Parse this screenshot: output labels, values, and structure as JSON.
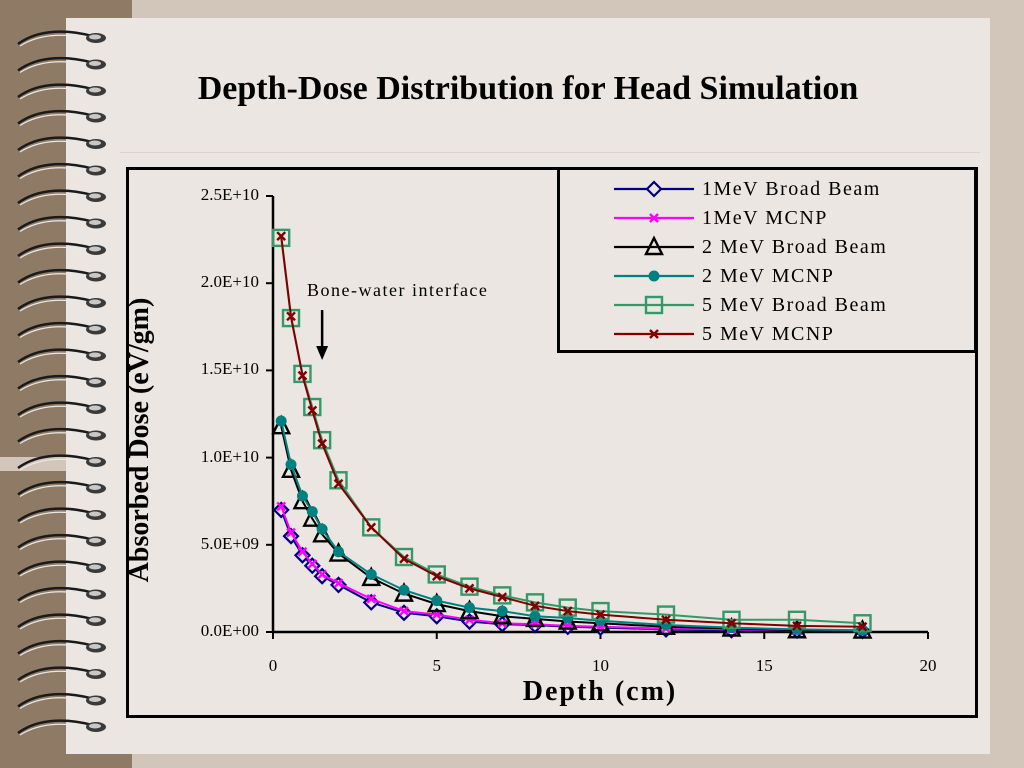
{
  "slide": {
    "title": "Depth-Dose Distribution for Head Simulation"
  },
  "chart_data": {
    "type": "line",
    "title": "",
    "xlabel": "Depth (cm)",
    "ylabel": "Absorbed Dose (eV/gm)",
    "xlim": [
      0,
      20
    ],
    "ylim": [
      0,
      25000000000
    ],
    "xticks": [
      0,
      5,
      10,
      15,
      20
    ],
    "xtick_labels": [
      "0",
      "5",
      "10",
      "15",
      "20"
    ],
    "yticks": [
      0,
      5000000000,
      10000000000,
      15000000000,
      20000000000,
      25000000000
    ],
    "ytick_labels": [
      "0.0E+00",
      "5.0E+09",
      "1.0E+10",
      "1.5E+10",
      "2.0E+10",
      "2.5E+10"
    ],
    "grid": false,
    "legend_position": "top-right",
    "annotation": {
      "text": "Bone-water interface",
      "x": 1.5,
      "y": 16500000000
    },
    "series": [
      {
        "name": "1MeV Broad Beam",
        "color": "#000080",
        "marker": "diamond",
        "x": [
          0.25,
          0.55,
          0.9,
          1.2,
          1.5,
          2.0,
          3.0,
          4.0,
          5.0,
          6.0,
          7.0,
          8.0,
          9.0,
          10.0,
          12.0,
          14.0,
          16.0,
          18.0
        ],
        "y": [
          7000000000,
          5500000000,
          4400000000,
          3800000000,
          3200000000,
          2700000000,
          1700000000,
          1100000000,
          900000000,
          600000000,
          450000000,
          400000000,
          300000000,
          250000000,
          150000000,
          100000000,
          80000000,
          60000000
        ]
      },
      {
        "name": "1MeV MCNP",
        "color": "#ff00ff",
        "marker": "x",
        "x": [
          0.25,
          0.55,
          0.9,
          1.2,
          1.5,
          2.0,
          3.0,
          4.0,
          5.0,
          6.0,
          7.0,
          8.0,
          9.0,
          10.0,
          12.0,
          14.0,
          16.0,
          18.0
        ],
        "y": [
          7200000000,
          5700000000,
          4600000000,
          3900000000,
          3300000000,
          2800000000,
          1900000000,
          1200000000,
          1000000000,
          700000000,
          500000000,
          450000000,
          350000000,
          300000000,
          200000000,
          150000000,
          100000000,
          80000000
        ]
      },
      {
        "name": "2 MeV Broad Beam",
        "color": "#000000",
        "marker": "triangle",
        "x": [
          0.25,
          0.55,
          0.9,
          1.2,
          1.5,
          2.0,
          3.0,
          4.0,
          5.0,
          6.0,
          7.0,
          8.0,
          9.0,
          10.0,
          12.0,
          14.0,
          16.0,
          18.0
        ],
        "y": [
          11800000000,
          9300000000,
          7500000000,
          6500000000,
          5600000000,
          4500000000,
          3100000000,
          2200000000,
          1600000000,
          1200000000,
          900000000,
          750000000,
          600000000,
          500000000,
          300000000,
          200000000,
          100000000,
          80000000
        ]
      },
      {
        "name": "2 MeV MCNP",
        "color": "#008080",
        "marker": "circle",
        "x": [
          0.25,
          0.55,
          0.9,
          1.2,
          1.5,
          2.0,
          3.0,
          4.0,
          5.0,
          6.0,
          7.0,
          8.0,
          9.0,
          10.0,
          12.0,
          14.0,
          16.0,
          18.0
        ],
        "y": [
          12100000000,
          9600000000,
          7800000000,
          6900000000,
          5900000000,
          4600000000,
          3300000000,
          2400000000,
          1800000000,
          1400000000,
          1200000000,
          900000000,
          800000000,
          650000000,
          400000000,
          250000000,
          150000000,
          100000000
        ]
      },
      {
        "name": "5 MeV Broad Beam",
        "color": "#339966",
        "marker": "square",
        "x": [
          0.25,
          0.55,
          0.9,
          1.2,
          1.5,
          2.0,
          3.0,
          4.0,
          5.0,
          6.0,
          7.0,
          8.0,
          9.0,
          10.0,
          12.0,
          14.0,
          16.0,
          18.0
        ],
        "y": [
          22600000000,
          18000000000,
          14800000000,
          12900000000,
          11000000000,
          8700000000,
          6000000000,
          4300000000,
          3300000000,
          2600000000,
          2100000000,
          1700000000,
          1400000000,
          1200000000,
          1000000000,
          700000000,
          700000000,
          500000000
        ]
      },
      {
        "name": "5 MeV MCNP",
        "color": "#800000",
        "marker": "x",
        "x": [
          0.25,
          0.55,
          0.9,
          1.2,
          1.5,
          2.0,
          3.0,
          4.0,
          5.0,
          6.0,
          7.0,
          8.0,
          9.0,
          10.0,
          12.0,
          14.0,
          16.0,
          18.0
        ],
        "y": [
          22700000000,
          18100000000,
          14700000000,
          12700000000,
          10800000000,
          8500000000,
          6000000000,
          4200000000,
          3200000000,
          2500000000,
          2000000000,
          1500000000,
          1200000000,
          1000000000,
          700000000,
          500000000,
          350000000,
          300000000
        ]
      }
    ]
  }
}
